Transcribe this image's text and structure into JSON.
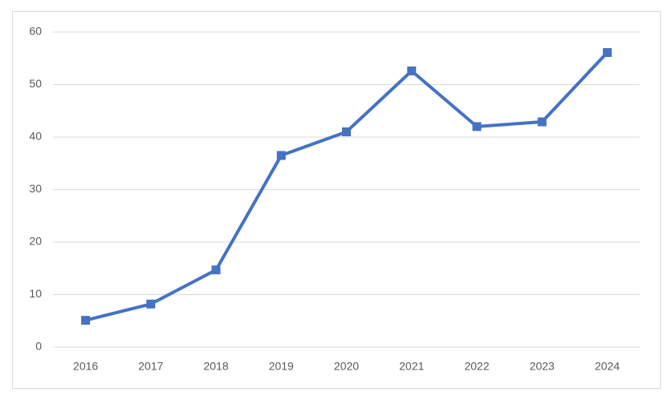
{
  "chart_data": {
    "type": "line",
    "categories": [
      "2016",
      "2017",
      "2018",
      "2019",
      "2020",
      "2021",
      "2022",
      "2023",
      "2024"
    ],
    "series": [
      {
        "color": "#4472c4",
        "values": [
          5.1,
          8.2,
          14.7,
          36.5,
          41.0,
          52.6,
          42.0,
          42.9,
          56.1
        ]
      }
    ],
    "ylim": [
      0,
      60
    ],
    "yticks": [
      0,
      10,
      20,
      30,
      40,
      50,
      60
    ],
    "grid": true
  }
}
